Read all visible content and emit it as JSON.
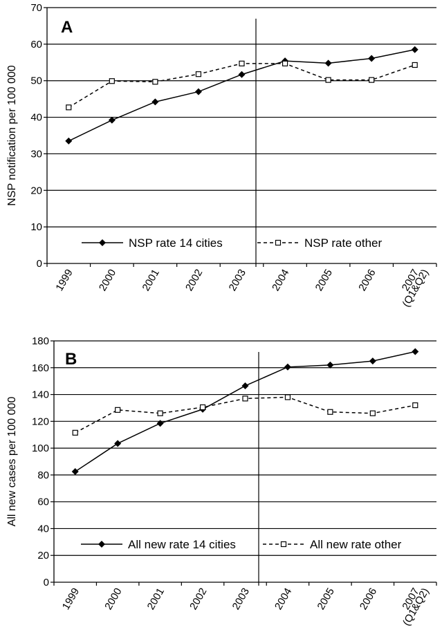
{
  "chart_data": [
    {
      "type": "line",
      "panel_label": "A",
      "ylabel": "NSP notification per 100 000",
      "xlabel": "",
      "ylim": [
        0,
        70
      ],
      "yticks": [
        0,
        10,
        20,
        30,
        40,
        50,
        60,
        70
      ],
      "categories": [
        "1999",
        "2000",
        "2001",
        "2002",
        "2003",
        "2004",
        "2005",
        "2006",
        "2007"
      ],
      "last_category_sub": "(Q1&Q2)",
      "divider_after": "2003",
      "grid": "horizontal",
      "legend": "bottom, inside plot",
      "series": [
        {
          "name": "NSP rate 14 cities",
          "style": "solid",
          "marker": "filled-diamond",
          "color": "#000000",
          "values": [
            33.5,
            39.2,
            44.2,
            47.0,
            51.7,
            55.4,
            54.8,
            56.1,
            58.5
          ]
        },
        {
          "name": "NSP rate other",
          "style": "dashed",
          "marker": "open-square",
          "color": "#000000",
          "values": [
            42.7,
            49.9,
            49.7,
            51.8,
            54.7,
            54.7,
            50.2,
            50.2,
            54.3
          ]
        }
      ]
    },
    {
      "type": "line",
      "panel_label": "B",
      "ylabel": "All new cases per 100 000",
      "xlabel": "",
      "ylim": [
        0,
        180
      ],
      "yticks": [
        0,
        20,
        40,
        60,
        80,
        100,
        120,
        140,
        160,
        180
      ],
      "categories": [
        "1999",
        "2000",
        "2001",
        "2002",
        "2003",
        "2004",
        "2005",
        "2006",
        "2007"
      ],
      "last_category_sub": "(Q1&Q2)",
      "divider_after": "2003",
      "grid": "horizontal",
      "legend": "bottom, inside plot",
      "series": [
        {
          "name": "All new rate 14 cities",
          "style": "solid",
          "marker": "filled-diamond",
          "color": "#000000",
          "values": [
            82.5,
            103.5,
            118.5,
            129.0,
            146.5,
            160.5,
            162.0,
            165.0,
            172.0
          ]
        },
        {
          "name": "All new rate other",
          "style": "dashed",
          "marker": "open-square",
          "color": "#000000",
          "values": [
            111.5,
            128.5,
            126.0,
            130.5,
            137.0,
            138.0,
            127.0,
            126.0,
            132.0
          ]
        }
      ]
    }
  ]
}
